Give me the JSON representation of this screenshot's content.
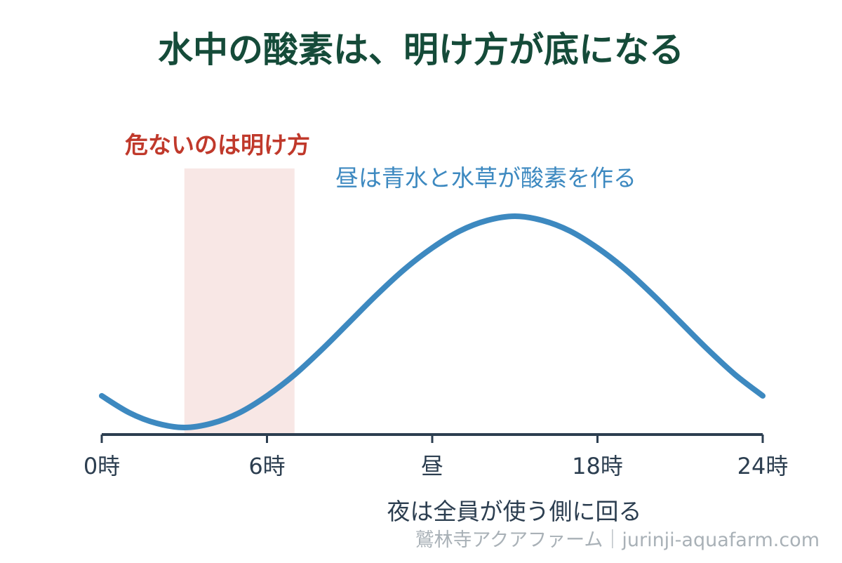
{
  "header": {
    "title": "水中の酸素は、明け方が底になる"
  },
  "annotations": {
    "danger": "危ないのは明け方",
    "day": "昼は青水と水草が酸素を作る",
    "night": "夜は全員が使う側に回る"
  },
  "footer": {
    "credit": "鷲林寺アクアファーム｜jurinji-aquafarm.com"
  },
  "colors": {
    "title": "#154b39",
    "danger": "#c0392b",
    "danger_band": "#f8e7e5",
    "curve": "#3d89c0",
    "axis": "#2c3e50",
    "credit": "#a9b1b7"
  },
  "chart_data": {
    "type": "line",
    "title": "水中の酸素は、明け方が底になる",
    "xlabel": "",
    "ylabel": "",
    "xlim": [
      0,
      24
    ],
    "ylim": [
      0,
      1
    ],
    "grid": false,
    "x_ticks": [
      {
        "value": 0,
        "label": "0時"
      },
      {
        "value": 6,
        "label": "6時"
      },
      {
        "value": 12,
        "label": "昼"
      },
      {
        "value": 18,
        "label": "18時"
      },
      {
        "value": 24,
        "label": "24時"
      }
    ],
    "highlight_band": {
      "x_start": 3,
      "x_end": 7
    },
    "series": [
      {
        "x": [
          0,
          1,
          2,
          3,
          4,
          5,
          6,
          7,
          8,
          9,
          10,
          11,
          12,
          13,
          14,
          15,
          16,
          17,
          18,
          19,
          20,
          21,
          22,
          23,
          24
        ],
        "values": [
          0.15,
          0.07,
          0.02,
          0.0,
          0.02,
          0.07,
          0.15,
          0.25,
          0.37,
          0.5,
          0.63,
          0.75,
          0.85,
          0.93,
          0.98,
          1.0,
          0.98,
          0.93,
          0.85,
          0.75,
          0.63,
          0.5,
          0.37,
          0.25,
          0.15
        ]
      }
    ]
  }
}
